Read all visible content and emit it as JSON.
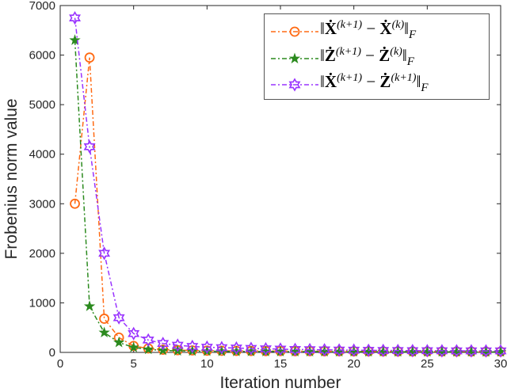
{
  "chart_data": {
    "type": "line",
    "xlabel": "Iteration number",
    "ylabel": "Frobenius norm value",
    "xlim": [
      0,
      30
    ],
    "ylim": [
      0,
      7000
    ],
    "xticks": [
      "0",
      "5",
      "10",
      "15",
      "20",
      "25",
      "30"
    ],
    "yticks": [
      "0",
      "1000",
      "2000",
      "3000",
      "4000",
      "5000",
      "6000",
      "7000"
    ],
    "grid": false,
    "legend_position": "top-right",
    "x": [
      1,
      2,
      3,
      4,
      5,
      6,
      7,
      8,
      9,
      10,
      11,
      12,
      13,
      14,
      15,
      16,
      17,
      18,
      19,
      20,
      21,
      22,
      23,
      24,
      25,
      26,
      27,
      28,
      29,
      30
    ],
    "series": [
      {
        "color": "#ff6a13",
        "marker": "circle",
        "line": "dash-dot",
        "legend": {
          "a": "Ẋ",
          "sa": "(k+1)",
          "op": " − ",
          "b": "Ẋ",
          "sb": "(k)",
          "sub": "F"
        },
        "values": [
          3000,
          5950,
          680,
          300,
          130,
          80,
          55,
          45,
          40,
          35,
          32,
          30,
          28,
          27,
          26,
          25,
          24,
          23,
          22,
          21,
          20,
          20,
          19,
          19,
          18,
          18,
          17,
          17,
          16,
          16
        ]
      },
      {
        "color": "#2b8a1e",
        "marker": "pentagram",
        "line": "dash-dot",
        "legend": {
          "a": "Ż",
          "sa": "(k+1)",
          "op": " − ",
          "b": "Ż",
          "sb": "(k)",
          "sub": "F"
        },
        "values": [
          6300,
          930,
          400,
          200,
          100,
          60,
          40,
          32,
          28,
          25,
          22,
          20,
          19,
          18,
          17,
          16,
          15,
          15,
          14,
          14,
          13,
          13,
          12,
          12,
          12,
          11,
          11,
          11,
          10,
          10
        ]
      },
      {
        "color": "#9933ff",
        "marker": "hexagram",
        "line": "dash-dot",
        "legend": {
          "a": "Ẋ",
          "sa": "(k+1)",
          "op": " − ",
          "b": "Ż",
          "sb": "(k+1)",
          "sub": "F"
        },
        "values": [
          6750,
          4150,
          2000,
          700,
          380,
          250,
          180,
          145,
          120,
          105,
          95,
          88,
          80,
          72,
          66,
          60,
          56,
          52,
          48,
          45,
          42,
          40,
          38,
          36,
          34,
          33,
          32,
          31,
          30,
          30
        ]
      }
    ]
  }
}
